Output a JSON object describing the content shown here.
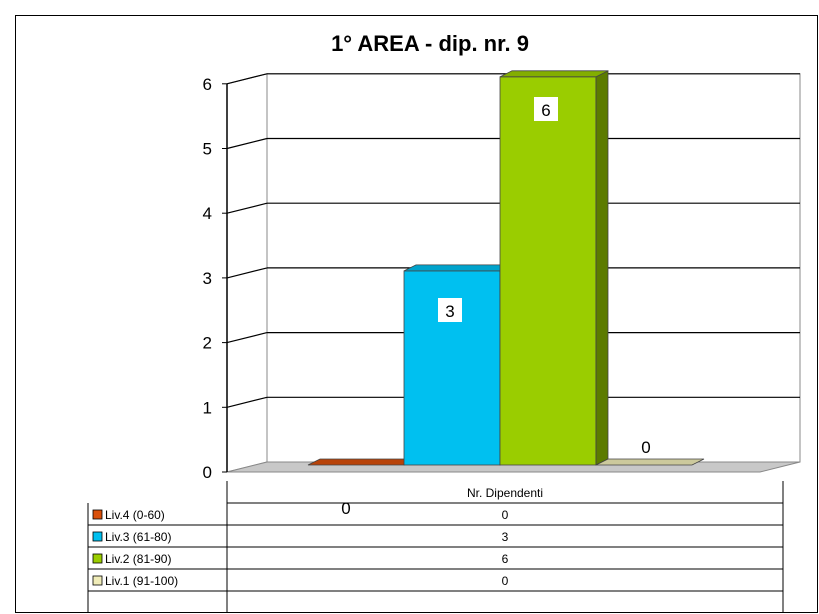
{
  "chart_data": {
    "type": "bar",
    "title": "1° AREA - dip. nr. 9",
    "category": "Nr. Dipendenti",
    "ylim": [
      0,
      6
    ],
    "yticks": [
      0,
      1,
      2,
      3,
      4,
      5,
      6
    ],
    "grid": true,
    "series": [
      {
        "name": "Liv.4 (0-60)",
        "value": 0,
        "color": "#d94f0a"
      },
      {
        "name": "Liv.3 (61-80)",
        "value": 3,
        "color": "#00c0f0"
      },
      {
        "name": "Liv.2 (81-90)",
        "value": 6,
        "color": "#9acd00"
      },
      {
        "name": "Liv.1 (91-100)",
        "value": 0,
        "color": "#f0ecb8"
      }
    ],
    "data_table": true
  }
}
